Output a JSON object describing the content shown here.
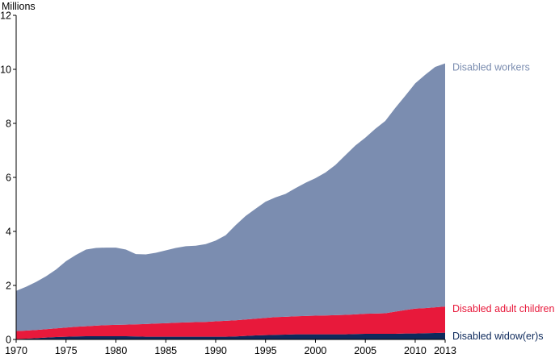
{
  "chart_data": {
    "type": "area",
    "stacked": true,
    "unit_label": "Millions",
    "x": [
      1970,
      1971,
      1972,
      1973,
      1974,
      1975,
      1976,
      1977,
      1978,
      1979,
      1980,
      1981,
      1982,
      1983,
      1984,
      1985,
      1986,
      1987,
      1988,
      1989,
      1990,
      1991,
      1992,
      1993,
      1994,
      1995,
      1996,
      1997,
      1998,
      1999,
      2000,
      2001,
      2002,
      2003,
      2004,
      2005,
      2006,
      2007,
      2008,
      2009,
      2010,
      2011,
      2012,
      2013
    ],
    "xticks": [
      1970,
      1975,
      1980,
      1985,
      1990,
      1995,
      2000,
      2005,
      2010,
      2013
    ],
    "yticks": [
      0,
      2,
      4,
      6,
      8,
      10,
      12
    ],
    "ylim": [
      0,
      12
    ],
    "xlim": [
      1970,
      2013
    ],
    "grid": false,
    "legend": "inline-right",
    "series": [
      {
        "name": "Disabled widow(er)s",
        "color": "#0e2a5c",
        "values": [
          0.02,
          0.03,
          0.05,
          0.07,
          0.09,
          0.1,
          0.11,
          0.12,
          0.12,
          0.12,
          0.12,
          0.12,
          0.11,
          0.1,
          0.1,
          0.1,
          0.1,
          0.1,
          0.1,
          0.1,
          0.1,
          0.1,
          0.11,
          0.13,
          0.15,
          0.16,
          0.17,
          0.18,
          0.19,
          0.19,
          0.19,
          0.19,
          0.19,
          0.19,
          0.2,
          0.21,
          0.21,
          0.21,
          0.21,
          0.22,
          0.22,
          0.23,
          0.24,
          0.25
        ]
      },
      {
        "name": "Disabled adult children",
        "color": "#e8193b",
        "values": [
          0.29,
          0.3,
          0.3,
          0.31,
          0.32,
          0.34,
          0.36,
          0.37,
          0.39,
          0.41,
          0.42,
          0.43,
          0.45,
          0.47,
          0.49,
          0.5,
          0.52,
          0.53,
          0.54,
          0.55,
          0.57,
          0.59,
          0.6,
          0.61,
          0.62,
          0.64,
          0.66,
          0.66,
          0.67,
          0.68,
          0.69,
          0.7,
          0.71,
          0.72,
          0.73,
          0.74,
          0.75,
          0.76,
          0.82,
          0.87,
          0.92,
          0.93,
          0.95,
          0.97
        ]
      },
      {
        "name": "Disabled workers",
        "color": "#7b8db0",
        "values": [
          1.49,
          1.62,
          1.78,
          1.96,
          2.18,
          2.46,
          2.66,
          2.84,
          2.88,
          2.87,
          2.86,
          2.78,
          2.6,
          2.58,
          2.62,
          2.7,
          2.77,
          2.82,
          2.83,
          2.88,
          2.99,
          3.17,
          3.52,
          3.83,
          4.07,
          4.3,
          4.43,
          4.55,
          4.74,
          4.93,
          5.09,
          5.29,
          5.56,
          5.91,
          6.25,
          6.52,
          6.84,
          7.12,
          7.54,
          7.93,
          8.34,
          8.64,
          8.9,
          9.0
        ]
      }
    ]
  }
}
